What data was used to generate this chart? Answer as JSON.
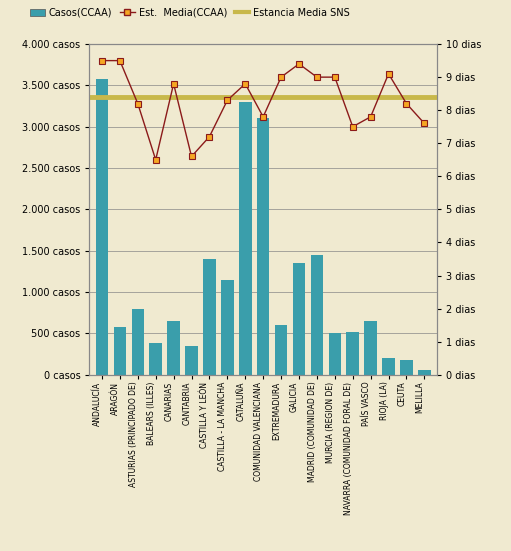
{
  "categories": [
    "ANDALUCÍA",
    "ARAGÓN",
    "ASTURIAS (PRINCIPADO DE)",
    "BALEARS (ILLES)",
    "CANARIAS",
    "CANTABRIA",
    "CASTILLA Y LEÓN",
    "CASTILLA - LA MANCHA",
    "CATALUÑA",
    "COMUNIDAD VALENCIANA",
    "EXTREMADURA",
    "GALICIA",
    "MADRID (COMUNIDAD DE)",
    "MURCIA (REGION DE)",
    "NAVARRA (COMUNIDAD FORAL DE)",
    "PAÍS VASCO",
    "RIOJA (LA)",
    "CEUTA",
    "MELILLA"
  ],
  "casos": [
    3580,
    580,
    800,
    380,
    650,
    350,
    1400,
    1150,
    3300,
    3100,
    600,
    1350,
    1450,
    500,
    520,
    650,
    200,
    175,
    55
  ],
  "estancia_media_ccaa": [
    9.5,
    9.5,
    8.2,
    6.5,
    8.8,
    6.6,
    7.2,
    8.3,
    8.8,
    7.8,
    9.0,
    9.4,
    9.0,
    9.0,
    7.5,
    7.8,
    9.1,
    8.2,
    7.6
  ],
  "estancia_media_sns": 8.4,
  "bar_color": "#3a9eab",
  "line_color": "#8b1a1a",
  "marker_facecolor": "#f5a623",
  "marker_edgecolor": "#8b1a1a",
  "sns_line_color": "#c8b84a",
  "background_color": "#f0ead0",
  "plot_bg_color": "#f0ead0",
  "outer_bg_color": "#f0ead0",
  "ylim_left": [
    0,
    4000
  ],
  "ylim_right": [
    0,
    10
  ],
  "yticks_left": [
    0,
    500,
    1000,
    1500,
    2000,
    2500,
    3000,
    3500,
    4000
  ],
  "ytick_labels_left": [
    "0 casos",
    "500 casos",
    "1.000 casos",
    "1.500 casos",
    "2.000 casos",
    "2.500 casos",
    "3.000 casos",
    "3.500 casos",
    "4.000 casos"
  ],
  "yticks_right": [
    0,
    1,
    2,
    3,
    4,
    5,
    6,
    7,
    8,
    9,
    10
  ],
  "ytick_labels_right": [
    "0 dias",
    "1 dias",
    "2 dias",
    "3 dias",
    "4 dias",
    "5 dias",
    "6 dias",
    "7 dias",
    "8 dias",
    "9 dias",
    "10 dias"
  ],
  "legend_labels": [
    "Casos(CCAA)",
    "Est.  Media(CCAA)",
    "Estancia Media SNS"
  ],
  "font_size": 7.5,
  "tick_font_size": 7
}
